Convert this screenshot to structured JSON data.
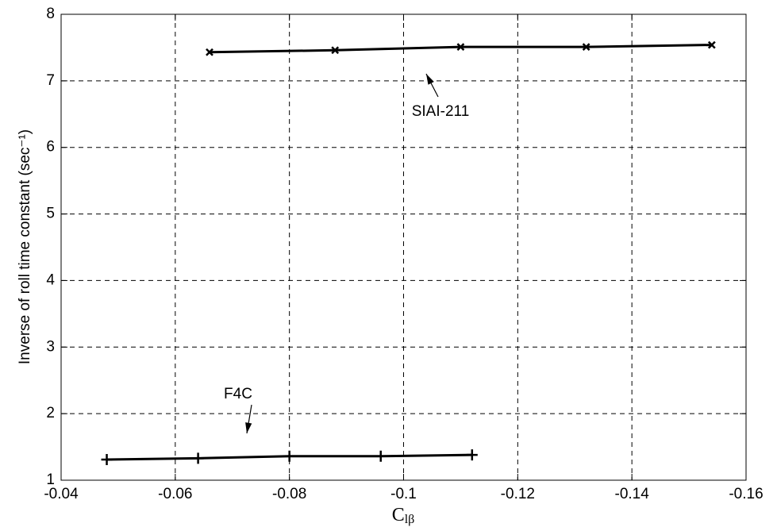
{
  "chart_data": {
    "type": "line",
    "ylabel": "Inverse of roll time constant (sec⁻¹)",
    "xlabel": {
      "text": "C",
      "subscript": "lβ"
    },
    "xlim": [
      -0.04,
      -0.16
    ],
    "xticks": [
      -0.04,
      -0.06,
      -0.08,
      -0.1,
      -0.12,
      -0.14,
      -0.16
    ],
    "ylim": [
      1,
      8
    ],
    "yticks": [
      1,
      2,
      3,
      4,
      5,
      6,
      7,
      8
    ],
    "grid": true,
    "series": [
      {
        "name": "SIAI-211",
        "color": "#000000",
        "marker": "x",
        "x": [
          -0.066,
          -0.088,
          -0.11,
          -0.132,
          -0.154
        ],
        "values": [
          7.43,
          7.46,
          7.51,
          7.51,
          7.54
        ]
      },
      {
        "name": "F4C",
        "color": "#000000",
        "marker": "+",
        "x": [
          -0.048,
          -0.064,
          -0.08,
          -0.096,
          -0.112
        ],
        "values": [
          1.31,
          1.33,
          1.36,
          1.36,
          1.38
        ]
      }
    ]
  }
}
